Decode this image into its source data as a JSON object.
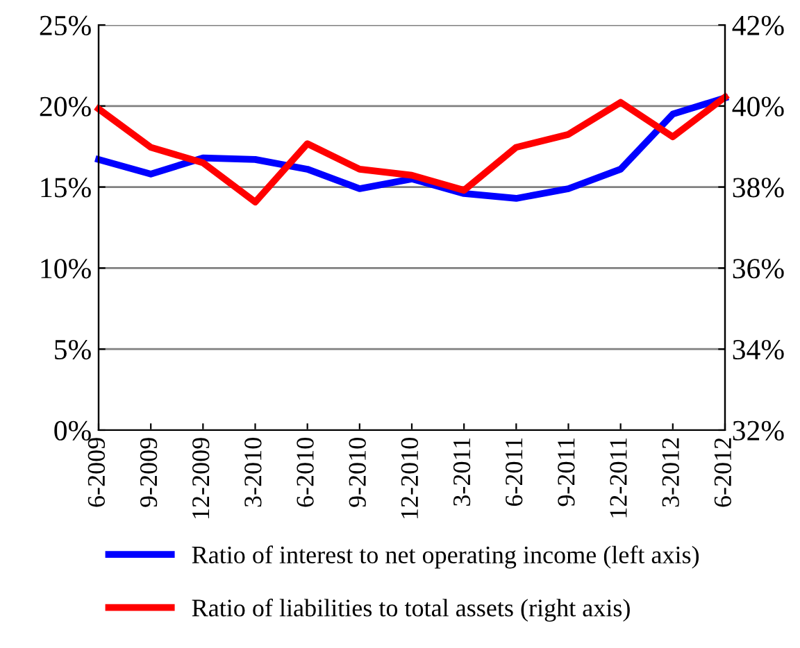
{
  "chart_data": {
    "type": "line",
    "categories": [
      "6-2009",
      "9-2009",
      "12-2009",
      "3-2010",
      "6-2010",
      "9-2010",
      "12-2010",
      "3-2011",
      "6-2011",
      "9-2011",
      "12-2011",
      "3-2012",
      "6-2012"
    ],
    "series": [
      {
        "name": "Ratio of interest to net operating income (left axis)",
        "color": "#0000ff",
        "values": [
          16.7,
          15.8,
          16.8,
          16.7,
          16.1,
          14.9,
          15.5,
          14.6,
          14.3,
          14.9,
          16.1,
          19.5,
          20.5
        ]
      },
      {
        "name": "Ratio of liabilities to total assets (right axis)",
        "color": "#ff0000",
        "axis": "y2",
        "values": [
          39.93,
          38.98,
          38.6,
          37.63,
          39.07,
          38.44,
          38.29,
          37.92,
          38.98,
          39.3,
          40.09,
          39.24,
          40.22
        ]
      }
    ],
    "ylim": [
      0,
      25
    ],
    "yticks": [
      {
        "value": 0,
        "label": "0%"
      },
      {
        "value": 5,
        "label": "5%"
      },
      {
        "value": 10,
        "label": "10%"
      },
      {
        "value": 15,
        "label": "15%"
      },
      {
        "value": 20,
        "label": "20%"
      },
      {
        "value": 25,
        "label": "25%"
      }
    ],
    "y2lim": [
      32,
      42
    ],
    "y2ticks": [
      {
        "value": 32,
        "label": "32%"
      },
      {
        "value": 34,
        "label": "34%"
      },
      {
        "value": 36,
        "label": "36%"
      },
      {
        "value": 38,
        "label": "38%"
      },
      {
        "value": 40,
        "label": "40%"
      },
      {
        "value": 42,
        "label": "42%"
      }
    ],
    "grid": "y",
    "legend": "bottom",
    "marker": "none",
    "line_style": "solid"
  }
}
